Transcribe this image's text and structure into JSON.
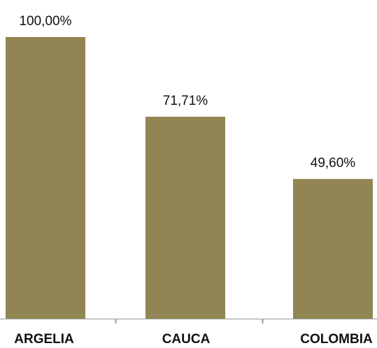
{
  "chart_data": {
    "type": "bar",
    "categories": [
      "ARGELIA",
      "CAUCA",
      "COLOMBIA"
    ],
    "values": [
      100.0,
      71.71,
      49.6
    ],
    "data_labels": [
      "100,00%",
      "71,71%",
      "49,60%"
    ],
    "ylim": [
      0,
      100
    ],
    "grid": false,
    "legend": "none",
    "bar_color": "#918653",
    "axis_color": "#999999"
  }
}
